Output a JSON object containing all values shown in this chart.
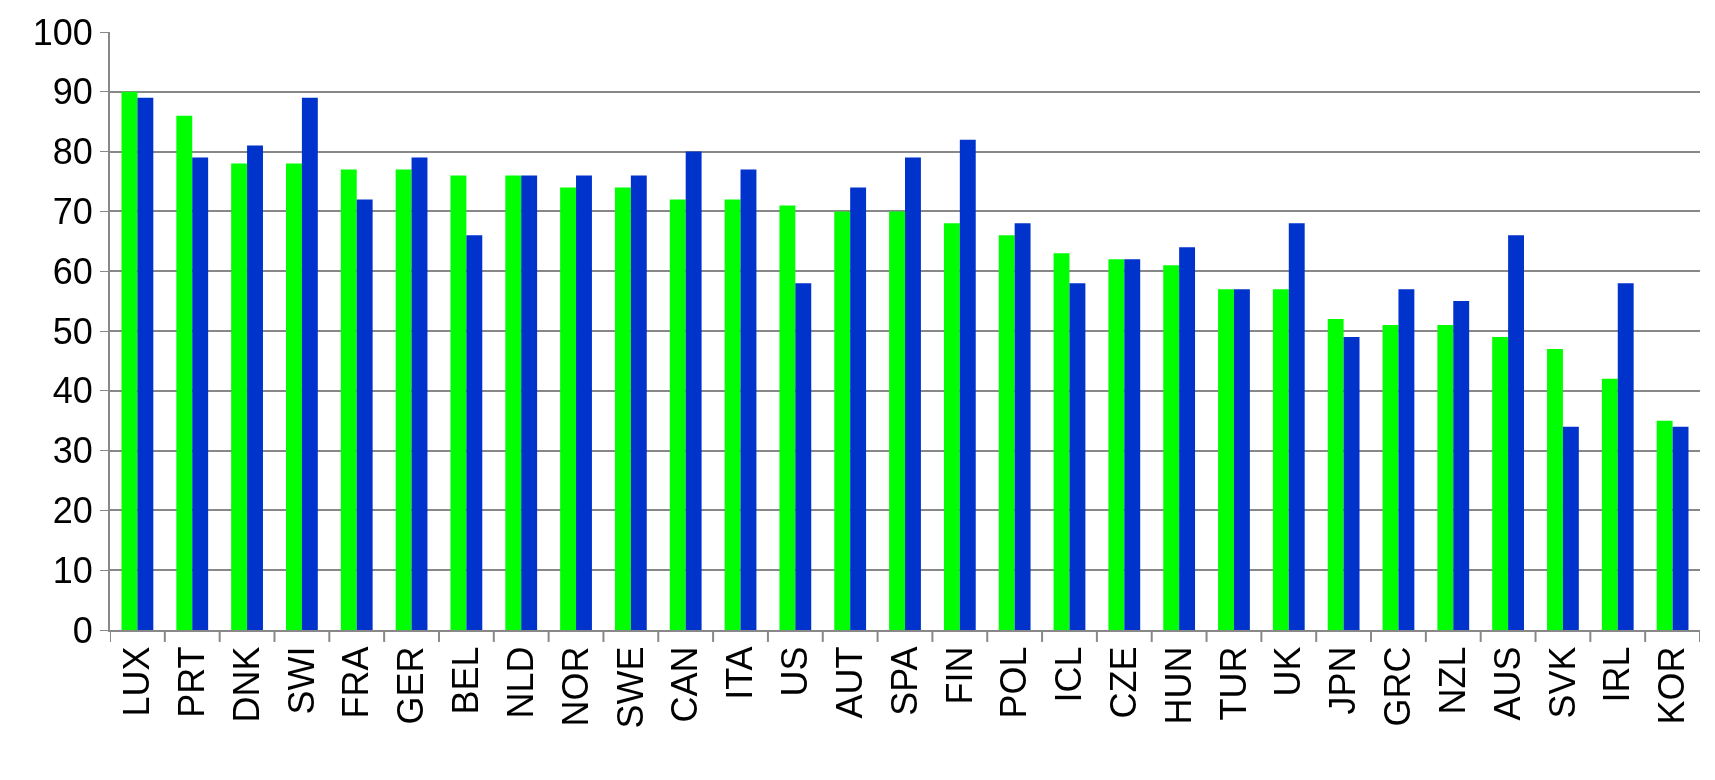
{
  "chart_data": {
    "type": "bar",
    "categories": [
      "LUX",
      "PRT",
      "DNK",
      "SWI",
      "FRA",
      "GER",
      "BEL",
      "NLD",
      "NOR",
      "SWE",
      "CAN",
      "ITA",
      "US",
      "AUT",
      "SPA",
      "FIN",
      "POL",
      "ICL",
      "CZE",
      "HUN",
      "TUR",
      "UK",
      "JPN",
      "GRC",
      "NZL",
      "AUS",
      "SVK",
      "IRL",
      "KOR"
    ],
    "series": [
      {
        "color": "#00ff00",
        "values": [
          90,
          86,
          78,
          78,
          77,
          77,
          76,
          76,
          74,
          74,
          72,
          72,
          71,
          70,
          70,
          68,
          66,
          63,
          62,
          61,
          57,
          57,
          52,
          51,
          51,
          49,
          47,
          42,
          35
        ]
      },
      {
        "color": "#0033cc",
        "values": [
          89,
          79,
          81,
          89,
          72,
          79,
          66,
          76,
          76,
          76,
          80,
          77,
          58,
          74,
          79,
          82,
          68,
          58,
          62,
          64,
          57,
          68,
          49,
          57,
          55,
          66,
          34,
          58,
          34
        ]
      }
    ],
    "ylim": [
      0,
      100
    ],
    "yticks": [
      0,
      10,
      20,
      30,
      40,
      50,
      60,
      70,
      80,
      90,
      100
    ],
    "grid": "y"
  }
}
